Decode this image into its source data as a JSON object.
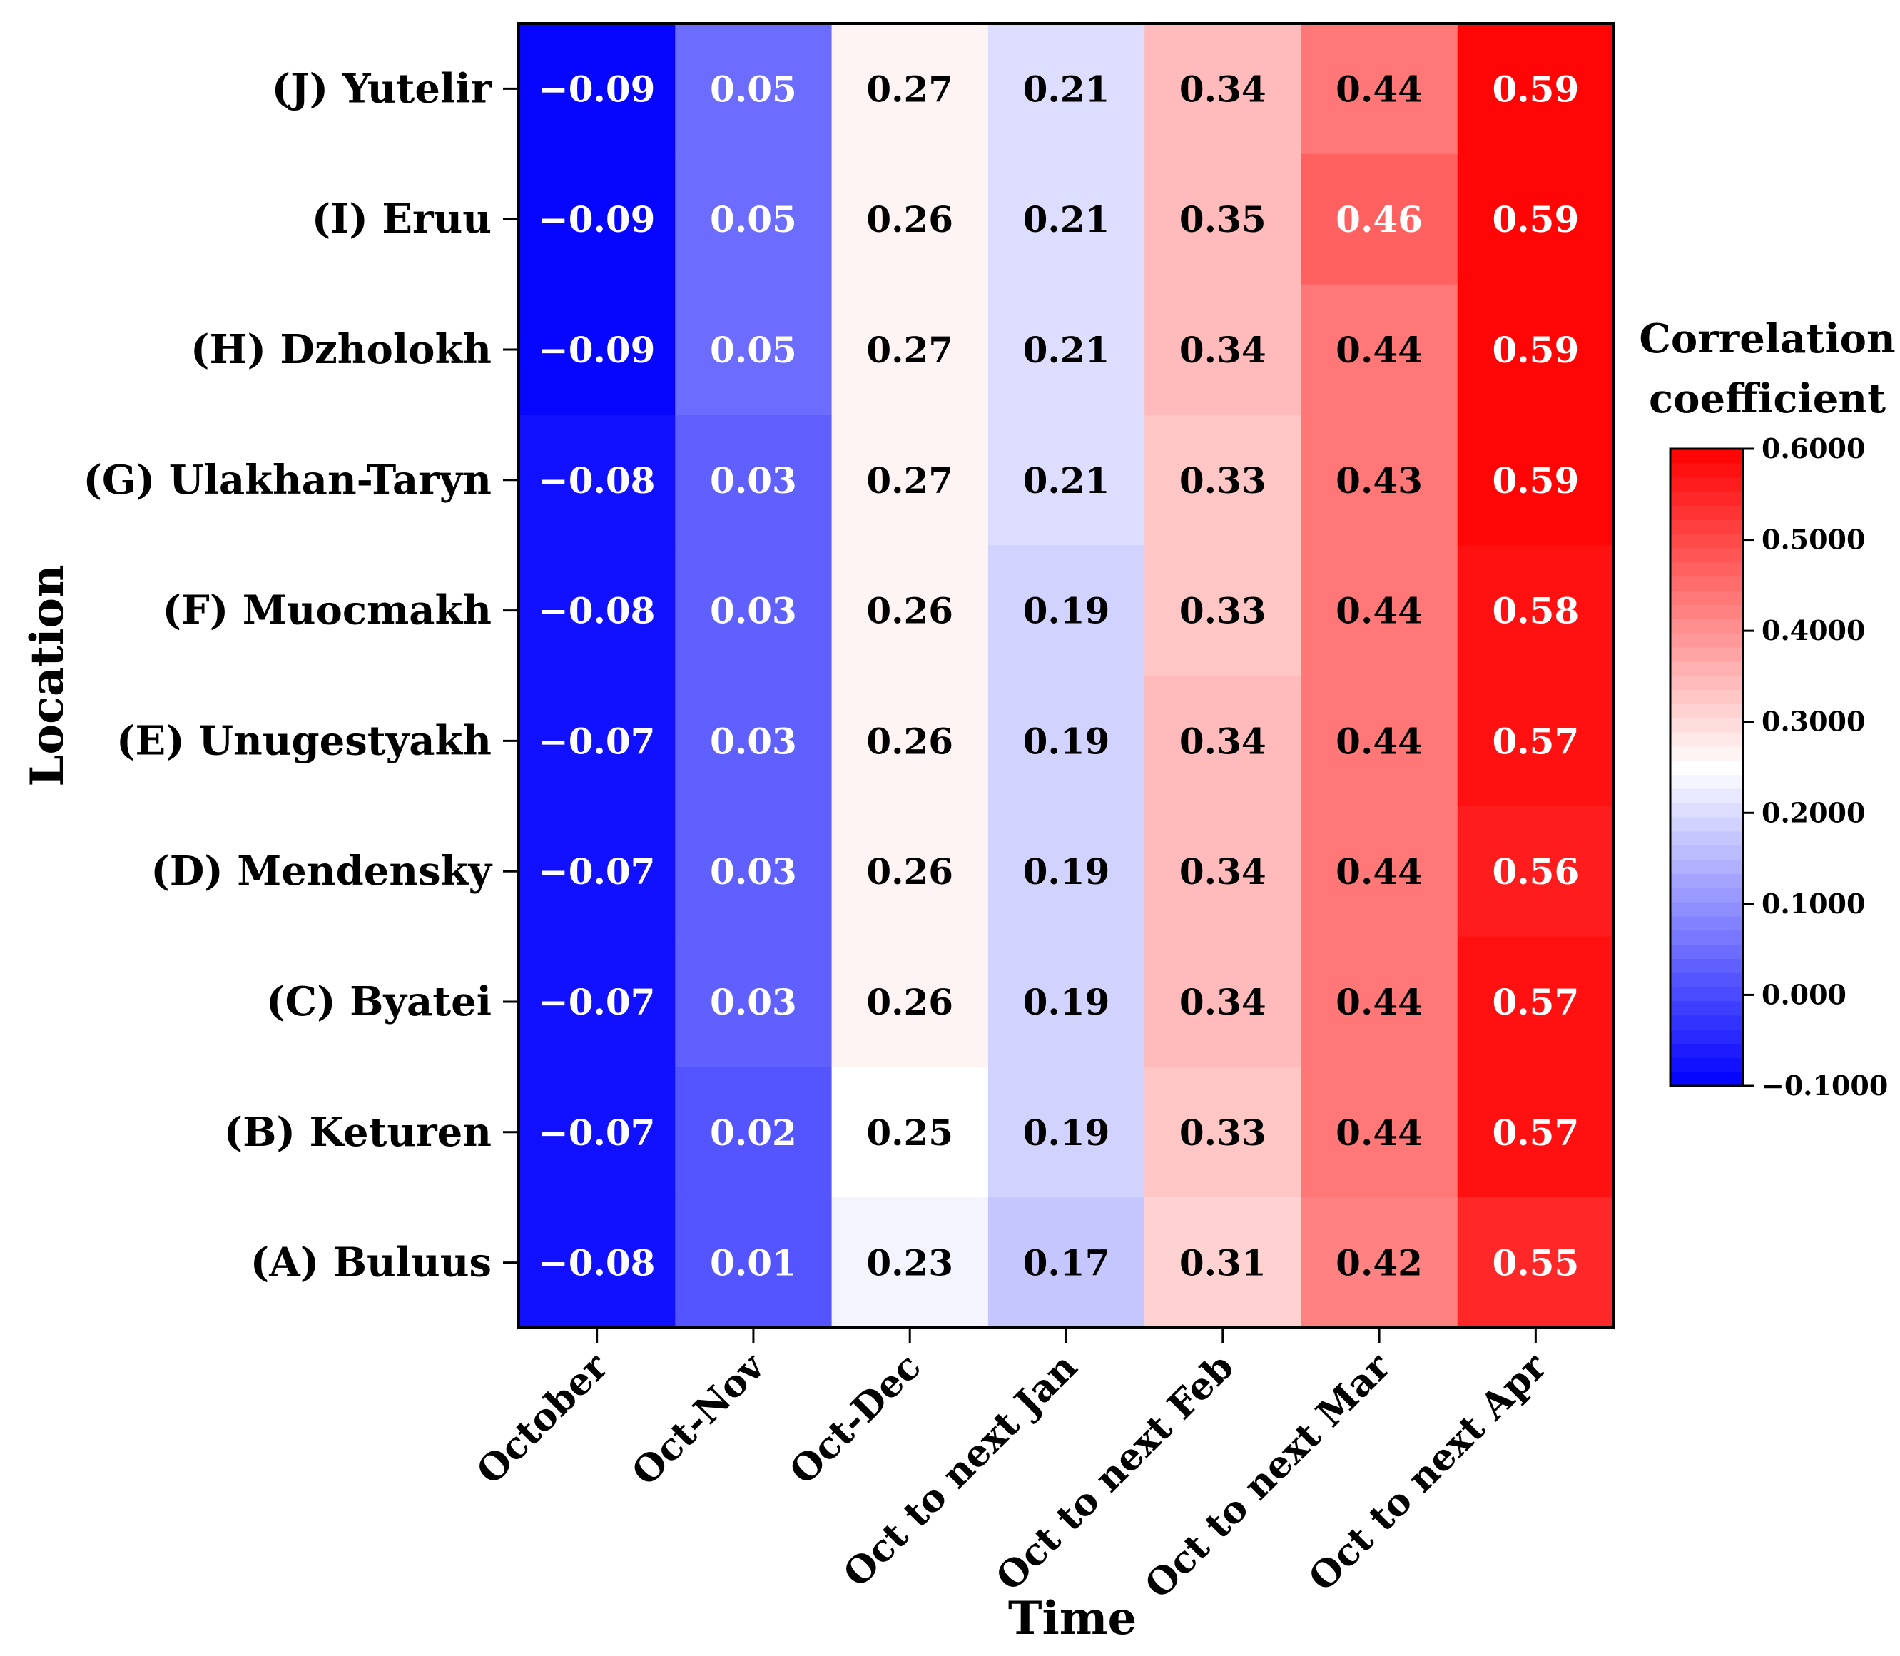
{
  "chart_data": {
    "type": "heatmap",
    "xlabel": "Time",
    "ylabel": "Location",
    "columns": [
      "October",
      "Oct-Nov",
      "Oct-Dec",
      "Oct to next Jan",
      "Oct to next Feb",
      "Oct to next Mar",
      "Oct to next Apr"
    ],
    "rows": [
      "(J) Yutelir",
      "(I) Eruu",
      "(H) Dzholokh",
      "(G) Ulakhan-Taryn",
      "(F) Muocmakh",
      "(E) Unugestyakh ",
      "(D) Mendensky",
      "(C) Byatei",
      "(B) Keturen",
      "(A) Buluus"
    ],
    "values": [
      [
        -0.09,
        0.05,
        0.27,
        0.21,
        0.34,
        0.44,
        0.59
      ],
      [
        -0.09,
        0.05,
        0.26,
        0.21,
        0.35,
        0.46,
        0.59
      ],
      [
        -0.09,
        0.05,
        0.27,
        0.21,
        0.34,
        0.44,
        0.59
      ],
      [
        -0.08,
        0.03,
        0.27,
        0.21,
        0.33,
        0.43,
        0.59
      ],
      [
        -0.08,
        0.03,
        0.26,
        0.19,
        0.33,
        0.44,
        0.58
      ],
      [
        -0.07,
        0.03,
        0.26,
        0.19,
        0.34,
        0.44,
        0.57
      ],
      [
        -0.07,
        0.03,
        0.26,
        0.19,
        0.34,
        0.44,
        0.56
      ],
      [
        -0.07,
        0.03,
        0.26,
        0.19,
        0.34,
        0.44,
        0.57
      ],
      [
        -0.07,
        0.02,
        0.25,
        0.19,
        0.33,
        0.44,
        0.57
      ],
      [
        -0.08,
        0.01,
        0.23,
        0.17,
        0.31,
        0.42,
        0.55
      ]
    ],
    "labels": [
      [
        "−0.09",
        "0.05",
        "0.27",
        "0.21",
        "0.34",
        "0.44",
        "0.59"
      ],
      [
        "−0.09",
        "0.05",
        "0.26",
        "0.21",
        "0.35",
        "0.46",
        "0.59"
      ],
      [
        "−0.09",
        "0.05",
        "0.27",
        "0.21",
        "0.34",
        "0.44",
        "0.59"
      ],
      [
        "−0.08",
        "0.03",
        "0.27",
        "0.21",
        "0.33",
        "0.43",
        "0.59"
      ],
      [
        "−0.08",
        "0.03",
        "0.26",
        "0.19",
        "0.33",
        "0.44",
        "0.58"
      ],
      [
        "−0.07",
        "0.03",
        "0.26",
        "0.19",
        "0.34",
        "0.44",
        "0.57"
      ],
      [
        "−0.07",
        "0.03",
        "0.26",
        "0.19",
        "0.34",
        "0.44",
        "0.56"
      ],
      [
        "−0.07",
        "0.03",
        "0.26",
        "0.19",
        "0.34",
        "0.44",
        "0.57"
      ],
      [
        "−0.07",
        "0.02",
        "0.25",
        "0.19",
        "0.33",
        "0.44",
        "0.57"
      ],
      [
        "−0.08",
        "0.01",
        "0.23",
        "0.17",
        "0.31",
        "0.42",
        "0.55"
      ]
    ],
    "colorbar": {
      "title_line1": "Correlation",
      "title_line2": "coefficient",
      "min": -0.1,
      "max": 0.6,
      "center": 0.25,
      "levels": 45,
      "ticks": [
        0.6,
        0.5,
        0.4,
        0.3,
        0.2,
        0.1,
        0.0,
        -0.1
      ],
      "tick_labels": [
        "0.6000",
        "0.5000",
        "0.4000",
        "0.3000",
        "0.2000",
        "0.1000",
        "0.000",
        "−0.1000"
      ],
      "colors": {
        "low": "#0000ff",
        "mid": "#ffffff",
        "high": "#ff0000"
      }
    }
  }
}
